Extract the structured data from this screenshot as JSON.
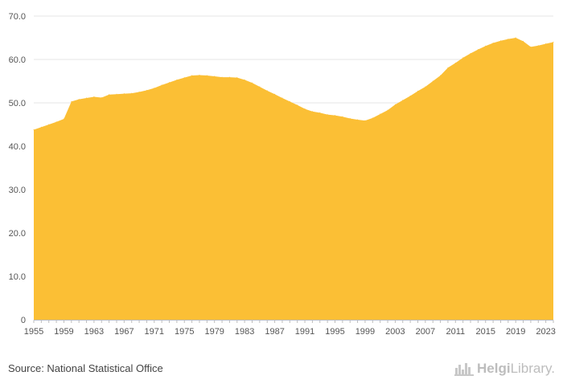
{
  "chart_data": {
    "type": "area",
    "title": "",
    "xlabel": "",
    "ylabel": "",
    "ylim": [
      0,
      70
    ],
    "xlim": [
      1955,
      2024
    ],
    "grid": true,
    "legend": "none",
    "color": "#fbbf35",
    "y_ticks": [
      "0",
      "10.0",
      "20.0",
      "30.0",
      "40.0",
      "50.0",
      "60.0",
      "70.0"
    ],
    "y_tick_values": [
      0,
      10,
      20,
      30,
      40,
      50,
      60,
      70
    ],
    "x_ticks": [
      "1955",
      "1959",
      "1963",
      "1967",
      "1971",
      "1975",
      "1979",
      "1983",
      "1987",
      "1991",
      "1995",
      "1999",
      "2003",
      "2007",
      "2011",
      "2015",
      "2019",
      "2023"
    ],
    "x_tick_values": [
      1955,
      1959,
      1963,
      1967,
      1971,
      1975,
      1979,
      1983,
      1987,
      1991,
      1995,
      1999,
      2003,
      2007,
      2011,
      2015,
      2019,
      2023
    ],
    "x": [
      1955,
      1956,
      1957,
      1958,
      1959,
      1960,
      1961,
      1962,
      1963,
      1964,
      1965,
      1966,
      1967,
      1968,
      1969,
      1970,
      1971,
      1972,
      1973,
      1974,
      1975,
      1976,
      1977,
      1978,
      1979,
      1980,
      1981,
      1982,
      1983,
      1984,
      1985,
      1986,
      1987,
      1988,
      1989,
      1990,
      1991,
      1992,
      1993,
      1994,
      1995,
      1996,
      1997,
      1998,
      1999,
      2000,
      2001,
      2002,
      2003,
      2004,
      2005,
      2006,
      2007,
      2008,
      2009,
      2010,
      2011,
      2012,
      2013,
      2014,
      2015,
      2016,
      2017,
      2018,
      2019,
      2020,
      2021,
      2022,
      2023,
      2024
    ],
    "values": [
      43.8,
      44.4,
      45.0,
      45.6,
      46.3,
      50.3,
      50.8,
      51.1,
      51.4,
      51.2,
      51.9,
      52.0,
      52.1,
      52.2,
      52.5,
      52.9,
      53.4,
      54.1,
      54.7,
      55.3,
      55.8,
      56.3,
      56.4,
      56.3,
      56.1,
      55.9,
      55.9,
      55.8,
      55.3,
      54.6,
      53.7,
      52.8,
      52.0,
      51.1,
      50.3,
      49.5,
      48.6,
      48.0,
      47.7,
      47.3,
      47.1,
      46.8,
      46.4,
      46.1,
      45.9,
      46.5,
      47.4,
      48.3,
      49.6,
      50.6,
      51.6,
      52.7,
      53.7,
      55.0,
      56.3,
      58.1,
      59.2,
      60.4,
      61.4,
      62.3,
      63.1,
      63.8,
      64.3,
      64.7,
      65.0,
      64.2,
      62.9,
      63.2,
      63.6,
      64.0
    ]
  },
  "footer": {
    "source": "Source: National Statistical Office",
    "logo_bold": "Helgi",
    "logo_light": "Library."
  }
}
